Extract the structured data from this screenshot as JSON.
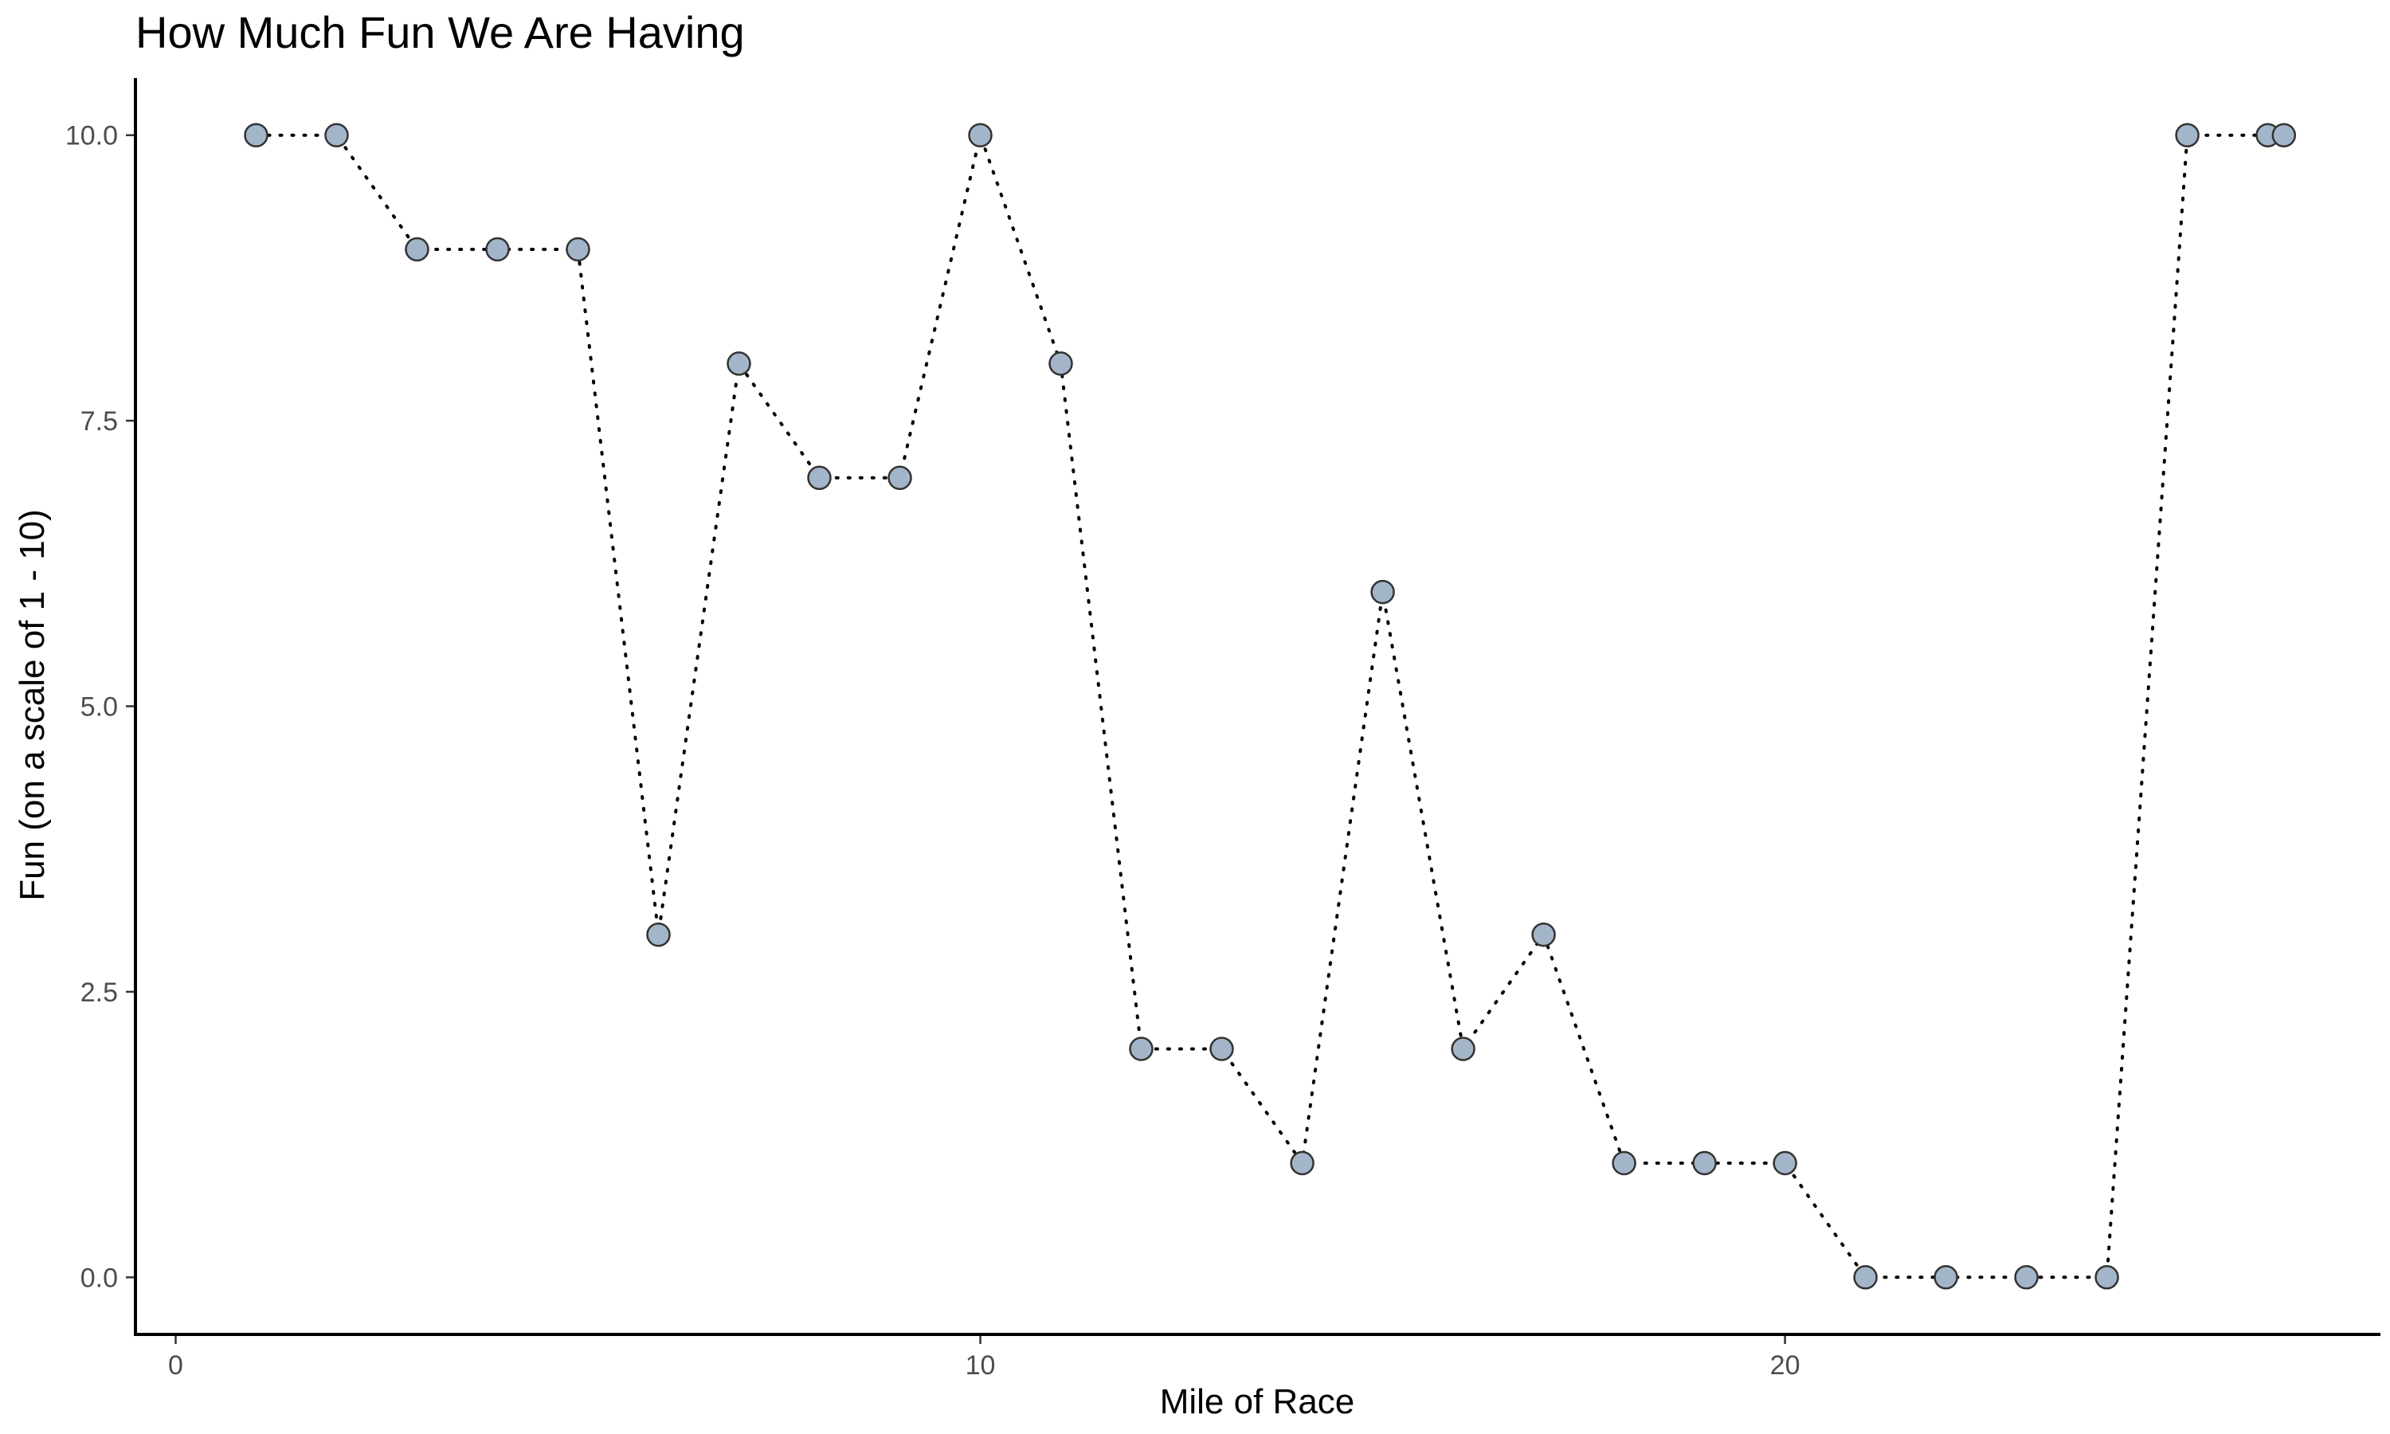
{
  "chart_data": {
    "type": "line",
    "title": "How Much Fun We Are Having",
    "xlabel": "Mile of Race",
    "ylabel": "Fun (on a scale of 1 - 10)",
    "xlim": [
      -0.5,
      27.4
    ],
    "ylim": [
      -0.5,
      10.5
    ],
    "x_ticks": [
      0,
      10,
      20
    ],
    "x_tick_labels": [
      "0",
      "10",
      "20"
    ],
    "y_ticks": [
      0,
      2.5,
      5,
      7.5,
      10
    ],
    "y_tick_labels": [
      "0.0",
      "2.5",
      "5.0",
      "7.5",
      "10.0"
    ],
    "grid": false,
    "line_style": "dotted",
    "marker_color": "#a3b5c9",
    "marker_edge_color": "#333333",
    "x": [
      1,
      2,
      3,
      4,
      5,
      6,
      7,
      8,
      9,
      10,
      11,
      12,
      13,
      14,
      15,
      16,
      17,
      18,
      19,
      20,
      21,
      22,
      23,
      24,
      25,
      26,
      26.2
    ],
    "y": [
      10,
      10,
      9,
      9,
      9,
      3,
      8,
      7,
      7,
      10,
      8,
      2,
      2,
      1,
      6,
      2,
      3,
      1,
      1,
      1,
      0,
      0,
      0,
      0,
      10,
      10,
      10
    ]
  }
}
